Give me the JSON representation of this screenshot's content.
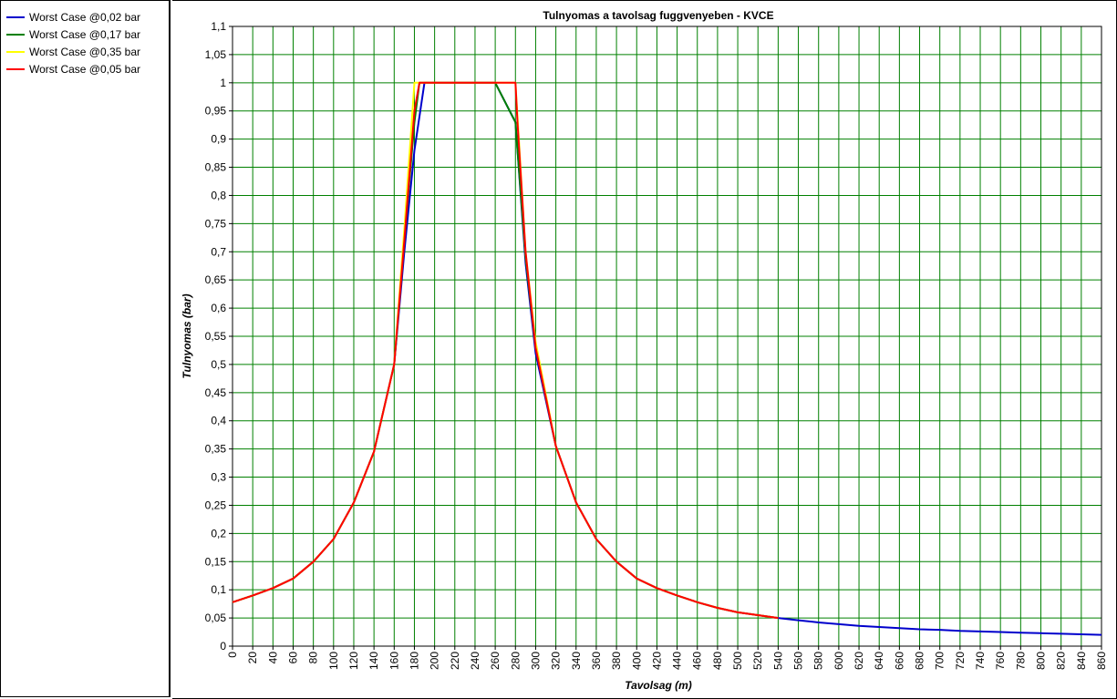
{
  "chart_data": {
    "type": "line",
    "title": "Tulnyomas a tavolsag fuggvenyeben - KVCE",
    "xlabel": "Tavolsag (m)",
    "ylabel": "Tulnyomas (bar)",
    "xlim": [
      0,
      860
    ],
    "ylim": [
      0,
      1.1
    ],
    "x_ticks": [
      "0",
      "20",
      "40",
      "60",
      "80",
      "100",
      "120",
      "140",
      "160",
      "180",
      "200",
      "220",
      "240",
      "260",
      "280",
      "300",
      "320",
      "340",
      "360",
      "380",
      "400",
      "420",
      "440",
      "460",
      "480",
      "500",
      "520",
      "540",
      "560",
      "580",
      "600",
      "620",
      "640",
      "660",
      "680",
      "700",
      "720",
      "740",
      "760",
      "780",
      "800",
      "820",
      "840",
      "860"
    ],
    "y_ticks": [
      "0",
      "0,05",
      "0,1",
      "0,15",
      "0,2",
      "0,25",
      "0,3",
      "0,35",
      "0,4",
      "0,45",
      "0,5",
      "0,55",
      "0,6",
      "0,65",
      "0,7",
      "0,75",
      "0,8",
      "0,85",
      "0,9",
      "0,95",
      "1",
      "1,05",
      "1,1"
    ],
    "grid": true,
    "grid_color": "#008000",
    "legend_position": "left panel",
    "series": [
      {
        "name": "Worst Case @0,02 bar",
        "color": "#0000cc",
        "x": [
          0,
          20,
          40,
          60,
          80,
          100,
          120,
          140,
          160,
          170,
          180,
          190,
          260,
          280,
          290,
          300,
          320,
          340,
          360,
          380,
          400,
          420,
          440,
          460,
          480,
          500,
          520,
          540,
          560,
          580,
          600,
          620,
          640,
          660,
          680,
          700,
          720,
          740,
          760,
          780,
          800,
          820,
          840,
          860
        ],
        "y": [
          0.078,
          0.09,
          0.103,
          0.12,
          0.15,
          0.19,
          0.255,
          0.345,
          0.5,
          0.7,
          0.88,
          1.0,
          1.0,
          0.93,
          0.68,
          0.52,
          0.355,
          0.255,
          0.19,
          0.15,
          0.12,
          0.103,
          0.09,
          0.078,
          0.068,
          0.06,
          0.055,
          0.05,
          0.046,
          0.042,
          0.039,
          0.036,
          0.034,
          0.032,
          0.03,
          0.029,
          0.027,
          0.026,
          0.025,
          0.024,
          0.023,
          0.022,
          0.021,
          0.02
        ]
      },
      {
        "name": "Worst Case @0,17 bar",
        "color": "#008000",
        "x": [
          0,
          20,
          40,
          60,
          80,
          100,
          120,
          140,
          160,
          170,
          180,
          185,
          190,
          260,
          280,
          290,
          300,
          320,
          340,
          360,
          380,
          400,
          420,
          440,
          460,
          480,
          500,
          520,
          540
        ],
        "y": [
          0.078,
          0.09,
          0.103,
          0.12,
          0.15,
          0.19,
          0.255,
          0.345,
          0.5,
          0.72,
          0.93,
          1.0,
          1.0,
          1.0,
          0.93,
          0.69,
          0.53,
          0.355,
          0.255,
          0.19,
          0.15,
          0.12,
          0.103,
          0.09,
          0.078,
          0.068,
          0.06,
          0.055,
          0.05
        ]
      },
      {
        "name": "Worst Case @0,35 bar",
        "color": "#ffff00",
        "x": [
          0,
          20,
          40,
          60,
          80,
          100,
          120,
          140,
          160,
          170,
          180,
          185,
          270,
          280,
          290,
          300,
          320,
          340,
          360,
          380,
          400,
          420,
          440,
          460,
          480,
          500,
          520,
          540
        ],
        "y": [
          0.078,
          0.09,
          0.103,
          0.12,
          0.15,
          0.19,
          0.255,
          0.345,
          0.5,
          0.74,
          1.0,
          1.0,
          1.0,
          1.0,
          0.7,
          0.54,
          0.355,
          0.255,
          0.19,
          0.15,
          0.12,
          0.103,
          0.09,
          0.078,
          0.068,
          0.06,
          0.055,
          0.05
        ]
      },
      {
        "name": "Worst Case @0,05 bar",
        "color": "#ff0000",
        "x": [
          0,
          20,
          40,
          60,
          80,
          100,
          120,
          140,
          160,
          170,
          180,
          185,
          190,
          280,
          282,
          290,
          300,
          320,
          340,
          360,
          380,
          400,
          420,
          440,
          460,
          480,
          500,
          520,
          540
        ],
        "y": [
          0.078,
          0.09,
          0.103,
          0.12,
          0.15,
          0.19,
          0.255,
          0.345,
          0.5,
          0.72,
          0.95,
          1.0,
          1.0,
          1.0,
          0.93,
          0.7,
          0.53,
          0.355,
          0.255,
          0.19,
          0.15,
          0.12,
          0.103,
          0.09,
          0.078,
          0.068,
          0.06,
          0.055,
          0.05
        ]
      }
    ]
  }
}
